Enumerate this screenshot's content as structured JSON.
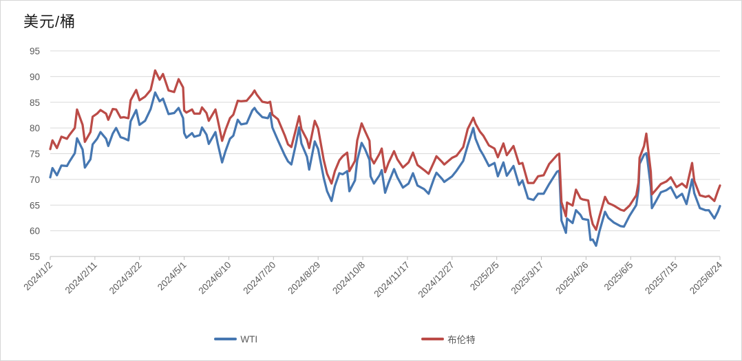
{
  "chart": {
    "title": "美元/桶"
  },
  "chart_data": {
    "type": "line",
    "title": "美元/桶",
    "ylabel": "美元/桶",
    "ylim": [
      55,
      95
    ],
    "ytick_step": 5,
    "y_tick_labels": [
      "55",
      "60",
      "65",
      "70",
      "75",
      "80",
      "85",
      "90",
      "95"
    ],
    "x_tick_labels": [
      "2024/1/2",
      "2024/2/11",
      "2024/3/22",
      "2024/5/1",
      "2024/6/10",
      "2024/7/20",
      "2024/8/29",
      "2024/10/8",
      "2024/11/17",
      "2024/12/27",
      "2025/2/5",
      "2025/3/17",
      "2025/4/26",
      "2025/6/5",
      "2025/7/15",
      "2025/8/24"
    ],
    "x_tick_interval_days": 40,
    "grid": "horizontal",
    "legend_position": "bottom-center",
    "colors": {
      "wti": "#4677B1",
      "brent": "#BB4B47",
      "gridline": "#D9D9D9",
      "axis": "#BFBFBF",
      "axis_text": "#595959",
      "title_text": "#1A1A1A"
    },
    "x": [
      "2024/1/2",
      "2024/1/4",
      "2024/1/8",
      "2024/1/12",
      "2024/1/17",
      "2024/1/19",
      "2024/1/24",
      "2024/1/26",
      "2024/1/31",
      "2024/2/2",
      "2024/2/7",
      "2024/2/9",
      "2024/2/13",
      "2024/2/16",
      "2024/2/21",
      "2024/2/23",
      "2024/2/27",
      "2024/3/1",
      "2024/3/5",
      "2024/3/8",
      "2024/3/12",
      "2024/3/14",
      "2024/3/19",
      "2024/3/22",
      "2024/3/27",
      "2024/4/1",
      "2024/4/5",
      "2024/4/9",
      "2024/4/12",
      "2024/4/17",
      "2024/4/22",
      "2024/4/26",
      "2024/4/30",
      "2024/5/1",
      "2024/5/3",
      "2024/5/8",
      "2024/5/10",
      "2024/5/15",
      "2024/5/17",
      "2024/5/21",
      "2024/5/23",
      "2024/5/29",
      "2024/5/31",
      "2024/6/4",
      "2024/6/7",
      "2024/6/11",
      "2024/6/14",
      "2024/6/18",
      "2024/6/21",
      "2024/6/26",
      "2024/7/1",
      "2024/7/3",
      "2024/7/5",
      "2024/7/10",
      "2024/7/15",
      "2024/7/17",
      "2024/7/19",
      "2024/7/24",
      "2024/7/30",
      "2024/8/2",
      "2024/8/5",
      "2024/8/9",
      "2024/8/12",
      "2024/8/14",
      "2024/8/19",
      "2024/8/21",
      "2024/8/26",
      "2024/8/29",
      "2024/9/3",
      "2024/9/6",
      "2024/9/10",
      "2024/9/13",
      "2024/9/17",
      "2024/9/20",
      "2024/9/24",
      "2024/9/26",
      "2024/10/1",
      "2024/10/3",
      "2024/10/7",
      "2024/10/10",
      "2024/10/14",
      "2024/10/15",
      "2024/10/18",
      "2024/10/23",
      "2024/10/25",
      "2024/10/28",
      "2024/10/31",
      "2024/11/5",
      "2024/11/8",
      "2024/11/13",
      "2024/11/18",
      "2024/11/22",
      "2024/11/26",
      "2024/12/2",
      "2024/12/6",
      "2024/12/11",
      "2024/12/13",
      "2024/12/18",
      "2024/12/20",
      "2024/12/27",
      "2024/12/31",
      "2025/1/6",
      "2025/1/10",
      "2025/1/15",
      "2025/1/17",
      "2025/1/21",
      "2025/1/24",
      "2025/1/29",
      "2025/2/3",
      "2025/2/6",
      "2025/2/11",
      "2025/2/14",
      "2025/2/20",
      "2025/2/25",
      "2025/2/28",
      "2025/3/5",
      "2025/3/10",
      "2025/3/14",
      "2025/3/19",
      "2025/3/24",
      "2025/3/31",
      "2025/4/2",
      "2025/4/4",
      "2025/4/8",
      "2025/4/9",
      "2025/4/14",
      "2025/4/17",
      "2025/4/21",
      "2025/4/23",
      "2025/4/28",
      "2025/4/30",
      "2025/5/2",
      "2025/5/5",
      "2025/5/8",
      "2025/5/13",
      "2025/5/16",
      "2025/5/21",
      "2025/5/27",
      "2025/5/30",
      "2025/6/4",
      "2025/6/10",
      "2025/6/12",
      "2025/6/13",
      "2025/6/17",
      "2025/6/19",
      "2025/6/20",
      "2025/6/23",
      "2025/6/24",
      "2025/6/27",
      "2025/7/2",
      "2025/7/7",
      "2025/7/11",
      "2025/7/16",
      "2025/7/21",
      "2025/7/25",
      "2025/7/30",
      "2025/8/1",
      "2025/8/6",
      "2025/8/11",
      "2025/8/14",
      "2025/8/19",
      "2025/8/22",
      "2025/8/24"
    ],
    "series": [
      {
        "name": "WTI",
        "color": "#4677B1",
        "values": [
          70.4,
          72.2,
          70.8,
          72.7,
          72.6,
          73.4,
          75.1,
          78.0,
          75.8,
          72.3,
          73.9,
          76.8,
          77.9,
          79.2,
          77.9,
          76.5,
          78.9,
          80.0,
          78.2,
          78.0,
          77.6,
          81.3,
          83.5,
          80.6,
          81.4,
          83.7,
          86.9,
          85.2,
          85.7,
          82.7,
          82.9,
          83.9,
          81.9,
          79.0,
          78.1,
          79.0,
          78.3,
          78.6,
          80.1,
          78.7,
          76.9,
          79.2,
          77.0,
          73.3,
          75.5,
          77.9,
          78.5,
          81.6,
          80.7,
          80.9,
          83.4,
          83.9,
          83.2,
          82.1,
          81.9,
          82.9,
          80.1,
          77.6,
          74.7,
          73.5,
          72.9,
          76.8,
          80.1,
          77.0,
          74.4,
          71.9,
          77.4,
          75.9,
          70.3,
          67.7,
          65.8,
          68.7,
          71.2,
          71.0,
          71.6,
          67.7,
          69.8,
          73.7,
          77.1,
          75.9,
          73.8,
          70.6,
          69.2,
          70.8,
          71.8,
          67.4,
          69.3,
          72.0,
          70.4,
          68.4,
          69.2,
          71.2,
          68.8,
          68.1,
          67.2,
          70.3,
          71.3,
          70.1,
          69.5,
          70.6,
          71.7,
          73.6,
          76.6,
          80.0,
          77.9,
          75.8,
          74.7,
          72.6,
          73.2,
          70.6,
          73.3,
          70.7,
          72.6,
          68.9,
          69.8,
          66.3,
          66.0,
          67.2,
          67.2,
          69.1,
          71.5,
          71.7,
          62.0,
          59.6,
          62.4,
          61.5,
          64.0,
          63.1,
          62.3,
          62.1,
          58.2,
          58.3,
          57.1,
          59.9,
          63.7,
          62.5,
          61.6,
          60.9,
          60.8,
          62.9,
          65.0,
          68.0,
          73.0,
          74.8,
          75.1,
          73.8,
          68.5,
          64.4,
          65.5,
          67.5,
          67.9,
          68.5,
          66.4,
          67.2,
          65.2,
          70.0,
          67.3,
          64.4,
          64.0,
          64.0,
          62.4,
          63.7,
          64.8
        ]
      },
      {
        "name": "布伦特",
        "color": "#BB4B47",
        "values": [
          75.9,
          77.6,
          76.1,
          78.3,
          77.9,
          78.6,
          80.0,
          83.6,
          80.6,
          77.3,
          79.2,
          82.2,
          82.8,
          83.5,
          82.8,
          81.6,
          83.7,
          83.6,
          82.0,
          82.1,
          81.9,
          85.4,
          87.4,
          85.4,
          86.1,
          87.4,
          91.2,
          89.4,
          90.5,
          87.3,
          87.0,
          89.5,
          87.9,
          83.4,
          83.0,
          83.6,
          82.8,
          82.8,
          84.0,
          82.9,
          81.4,
          83.6,
          81.6,
          77.5,
          79.6,
          81.9,
          82.6,
          85.3,
          85.2,
          85.3,
          86.6,
          87.3,
          86.5,
          85.1,
          84.9,
          85.1,
          82.6,
          81.7,
          78.6,
          76.8,
          76.3,
          79.7,
          82.3,
          79.8,
          77.7,
          76.1,
          81.4,
          79.9,
          73.8,
          71.1,
          69.2,
          71.6,
          73.7,
          74.5,
          75.2,
          71.6,
          73.6,
          77.6,
          80.9,
          79.4,
          77.5,
          74.3,
          73.1,
          75.0,
          76.0,
          71.4,
          73.2,
          75.5,
          73.9,
          72.3,
          73.3,
          75.2,
          72.8,
          71.8,
          71.1,
          73.5,
          74.5,
          73.4,
          72.9,
          74.2,
          74.6,
          76.3,
          79.8,
          82.0,
          80.8,
          79.3,
          78.5,
          76.6,
          76.0,
          74.3,
          77.0,
          74.7,
          76.5,
          73.0,
          73.2,
          69.3,
          69.3,
          70.6,
          70.8,
          73.0,
          74.7,
          75.0,
          65.6,
          62.8,
          65.5,
          64.9,
          68.0,
          66.3,
          66.1,
          65.9,
          63.1,
          61.3,
          60.2,
          62.8,
          66.6,
          65.4,
          64.9,
          64.1,
          63.9,
          64.9,
          66.9,
          69.4,
          74.2,
          76.5,
          78.9,
          77.0,
          71.5,
          67.1,
          67.8,
          69.1,
          69.6,
          70.4,
          68.5,
          69.2,
          68.4,
          73.2,
          69.7,
          66.9,
          66.6,
          66.8,
          65.8,
          67.7,
          68.8
        ]
      }
    ]
  }
}
